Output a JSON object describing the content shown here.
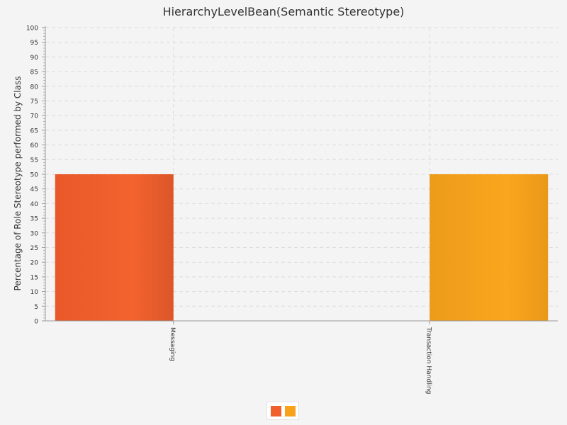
{
  "chart_data": {
    "type": "bar",
    "title": "HierarchyLevelBean(Semantic Stereotype)",
    "xlabel": "",
    "ylabel": "Percentage of Role Stereotype performed by Class",
    "ylim": [
      0,
      100
    ],
    "y_tick_step": 5,
    "grid": true,
    "legend_position": "bottom-center",
    "categories": [
      "Messaging",
      "Transaction Handling"
    ],
    "series": [
      {
        "color": "#f0602c",
        "values": [
          50,
          0
        ]
      },
      {
        "color": "#f8a21c",
        "values": [
          0,
          50
        ]
      }
    ]
  }
}
